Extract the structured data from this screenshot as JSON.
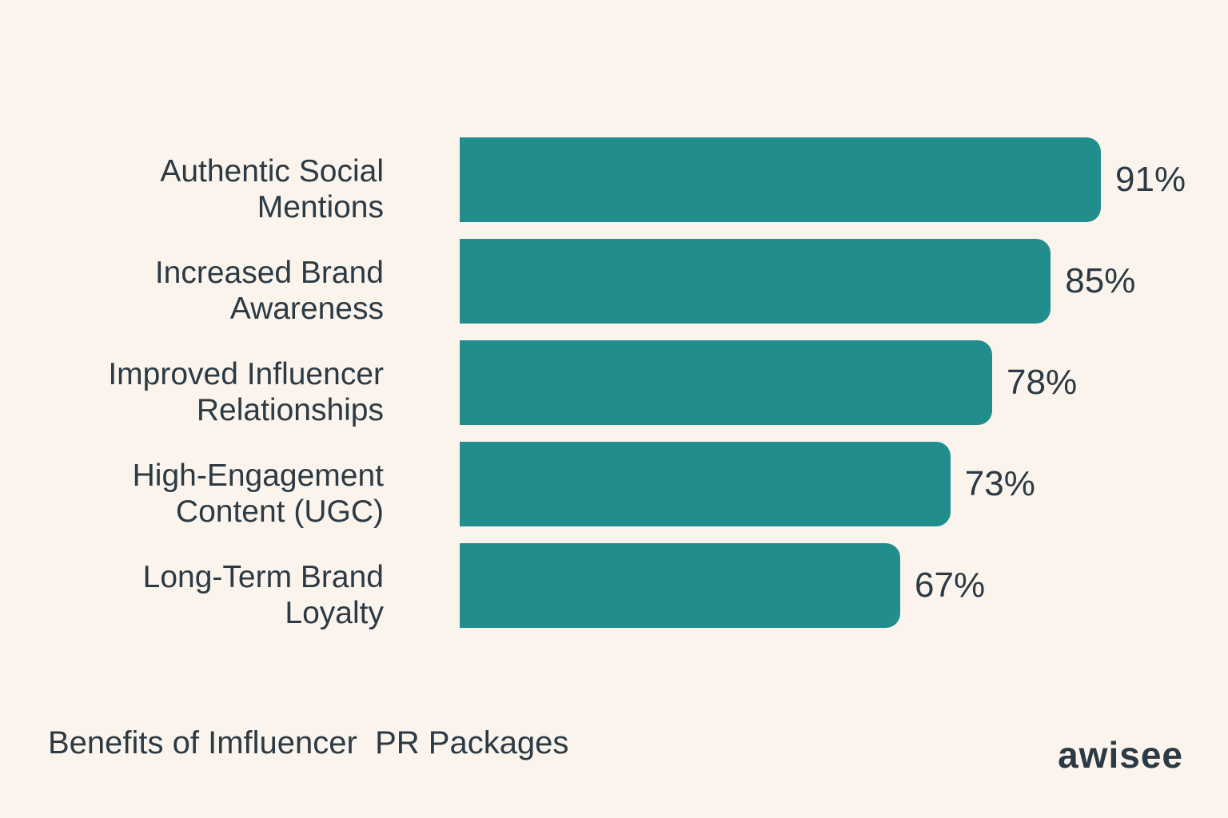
{
  "chart_data": {
    "type": "bar",
    "orientation": "horizontal",
    "title": "Benefits of Imfluencer  PR Packages",
    "categories": [
      "Authentic Social\nMentions",
      "Increased Brand\nAwareness",
      "Improved Influencer\nRelationships",
      "High-Engagement\nContent (UGC)",
      "Long-Term Brand\nLoyalty"
    ],
    "values": [
      91,
      85,
      78,
      73,
      67
    ],
    "value_labels": [
      "91%",
      "85%",
      "78%",
      "73%",
      "67%"
    ],
    "xlim": [
      0,
      100
    ],
    "grid": false,
    "bar_color": "#218d8d",
    "text_color": "#2b3a44",
    "background": "#fbf4ec"
  },
  "brand": {
    "logo_text": "awisee"
  }
}
